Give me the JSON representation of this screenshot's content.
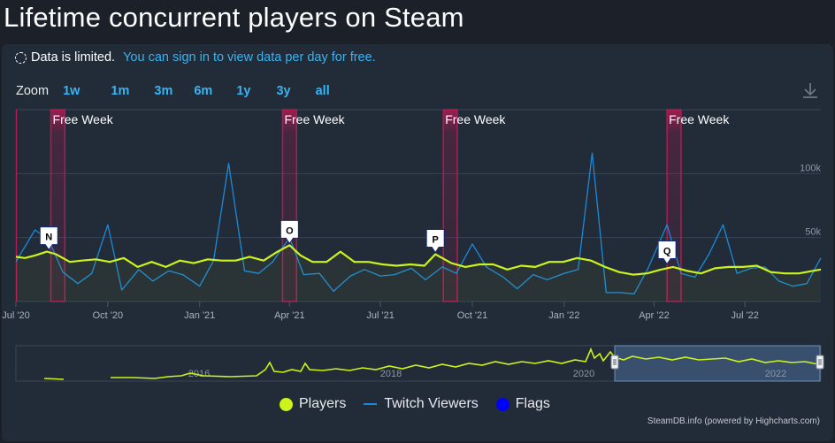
{
  "page": {
    "title": "Lifetime concurrent players on Steam"
  },
  "notice": {
    "text": "Data is limited.",
    "link": "You can sign in to view data per day for free."
  },
  "zoom": {
    "label": "Zoom",
    "buttons": [
      "1w",
      "1m",
      "3m",
      "6m",
      "1y",
      "3y",
      "all"
    ]
  },
  "legend": {
    "players": "Players",
    "twitch": "Twitch Viewers",
    "flags": "Flags"
  },
  "credits": "SteamDB.info (powered by Highcharts.com)",
  "colors": {
    "players": "#ccf31b",
    "twitch": "#1c8ad8",
    "flags": "#0000ff",
    "free_week": "#b31a54"
  },
  "chart_data": {
    "type": "line",
    "title": "Lifetime concurrent players on Steam",
    "x_range": [
      "2020-07-01",
      "2022-09-15"
    ],
    "x_ticks": [
      {
        "date": "2020-07-01",
        "label": "Jul '20"
      },
      {
        "date": "2020-10-01",
        "label": "Oct '20"
      },
      {
        "date": "2021-01-01",
        "label": "Jan '21"
      },
      {
        "date": "2021-04-01",
        "label": "Apr '21"
      },
      {
        "date": "2021-07-01",
        "label": "Jul '21"
      },
      {
        "date": "2021-10-01",
        "label": "Oct '21"
      },
      {
        "date": "2022-01-01",
        "label": "Jan '22"
      },
      {
        "date": "2022-04-01",
        "label": "Apr '22"
      },
      {
        "date": "2022-07-01",
        "label": "Jul '22"
      }
    ],
    "y_range": [
      0,
      150000
    ],
    "y_ticks": [
      {
        "value": 50000,
        "label": "50k"
      },
      {
        "value": 100000,
        "label": "100k"
      }
    ],
    "plot_bands": [
      {
        "from": "2020-08-05",
        "to": "2020-08-19",
        "label": "Free Week"
      },
      {
        "from": "2021-03-25",
        "to": "2021-04-08",
        "label": "Free Week"
      },
      {
        "from": "2021-09-02",
        "to": "2021-09-16",
        "label": "Free Week"
      },
      {
        "from": "2022-04-14",
        "to": "2022-04-28",
        "label": "Free Week"
      }
    ],
    "flags": [
      {
        "date": "2020-08-03",
        "value": 39000,
        "label": "N"
      },
      {
        "date": "2021-04-01",
        "value": 44000,
        "label": "O"
      },
      {
        "date": "2021-08-25",
        "value": 37000,
        "label": "P"
      },
      {
        "date": "2022-04-14",
        "value": 28000,
        "label": "Q"
      }
    ],
    "series": [
      {
        "name": "Players",
        "dates": [
          "2020-07-01",
          "2020-07-10",
          "2020-07-20",
          "2020-08-01",
          "2020-08-10",
          "2020-08-24",
          "2020-09-05",
          "2020-09-19",
          "2020-10-03",
          "2020-10-17",
          "2020-10-31",
          "2020-11-14",
          "2020-11-28",
          "2020-12-12",
          "2020-12-26",
          "2021-01-09",
          "2021-01-23",
          "2021-02-06",
          "2021-02-20",
          "2021-03-06",
          "2021-03-20",
          "2021-04-01",
          "2021-04-12",
          "2021-04-24",
          "2021-05-08",
          "2021-05-22",
          "2021-06-05",
          "2021-06-19",
          "2021-07-03",
          "2021-07-17",
          "2021-07-31",
          "2021-08-14",
          "2021-08-25",
          "2021-09-10",
          "2021-09-24",
          "2021-10-08",
          "2021-10-22",
          "2021-11-05",
          "2021-11-19",
          "2021-12-03",
          "2021-12-17",
          "2021-12-31",
          "2022-01-14",
          "2022-01-28",
          "2022-02-11",
          "2022-02-25",
          "2022-03-11",
          "2022-03-25",
          "2022-04-08",
          "2022-04-20",
          "2022-05-04",
          "2022-05-18",
          "2022-06-01",
          "2022-06-15",
          "2022-06-29",
          "2022-07-13",
          "2022-07-27",
          "2022-08-10",
          "2022-08-24",
          "2022-09-07",
          "2022-09-15"
        ],
        "values": [
          35000,
          34000,
          36000,
          39000,
          37000,
          31000,
          32000,
          33000,
          31000,
          34000,
          27000,
          31000,
          27000,
          32000,
          30000,
          33000,
          32000,
          32000,
          35000,
          32000,
          39000,
          44000,
          36000,
          31000,
          31000,
          39000,
          31000,
          31000,
          29000,
          28000,
          29000,
          28000,
          37000,
          30000,
          27000,
          29000,
          29000,
          25000,
          28000,
          27000,
          31000,
          31000,
          34000,
          32000,
          27000,
          23000,
          21000,
          22000,
          25000,
          27000,
          24000,
          22000,
          26000,
          27000,
          27000,
          28000,
          23000,
          22000,
          22000,
          24000,
          25000
        ]
      },
      {
        "name": "Twitch Viewers",
        "dates": [
          "2020-07-01",
          "2020-07-20",
          "2020-08-03",
          "2020-08-17",
          "2020-09-01",
          "2020-09-15",
          "2020-10-01",
          "2020-10-15",
          "2020-11-01",
          "2020-11-15",
          "2020-12-01",
          "2020-12-15",
          "2021-01-01",
          "2021-01-15",
          "2021-01-30",
          "2021-02-15",
          "2021-03-01",
          "2021-03-15",
          "2021-04-01",
          "2021-04-15",
          "2021-05-01",
          "2021-05-15",
          "2021-06-01",
          "2021-06-15",
          "2021-07-01",
          "2021-07-15",
          "2021-08-01",
          "2021-08-15",
          "2021-09-01",
          "2021-09-15",
          "2021-10-01",
          "2021-10-15",
          "2021-11-01",
          "2021-11-15",
          "2021-12-01",
          "2021-12-15",
          "2022-01-01",
          "2022-01-15",
          "2022-01-29",
          "2022-02-12",
          "2022-02-26",
          "2022-03-12",
          "2022-03-26",
          "2022-04-14",
          "2022-04-28",
          "2022-05-12",
          "2022-05-26",
          "2022-06-09",
          "2022-06-23",
          "2022-07-07",
          "2022-07-21",
          "2022-08-04",
          "2022-08-18",
          "2022-09-01",
          "2022-09-15"
        ],
        "values": [
          31000,
          56000,
          48000,
          23000,
          14000,
          22000,
          60000,
          9000,
          25000,
          16000,
          24000,
          21000,
          12000,
          32000,
          108000,
          24000,
          22000,
          31000,
          50000,
          21000,
          22000,
          8000,
          20000,
          25000,
          20000,
          21000,
          26000,
          17000,
          27000,
          22000,
          45000,
          27000,
          19000,
          10000,
          21000,
          17000,
          22000,
          25000,
          116000,
          7000,
          7000,
          6000,
          26000,
          60000,
          22000,
          19000,
          37000,
          60000,
          22000,
          26000,
          27000,
          16000,
          12000,
          14000,
          34000
        ]
      }
    ],
    "navigator": {
      "x_labels": [
        "2016",
        "2018",
        "2020",
        "2022"
      ],
      "description": "Overview of all-time players; selected range Jul '20 – Sep '22"
    }
  }
}
